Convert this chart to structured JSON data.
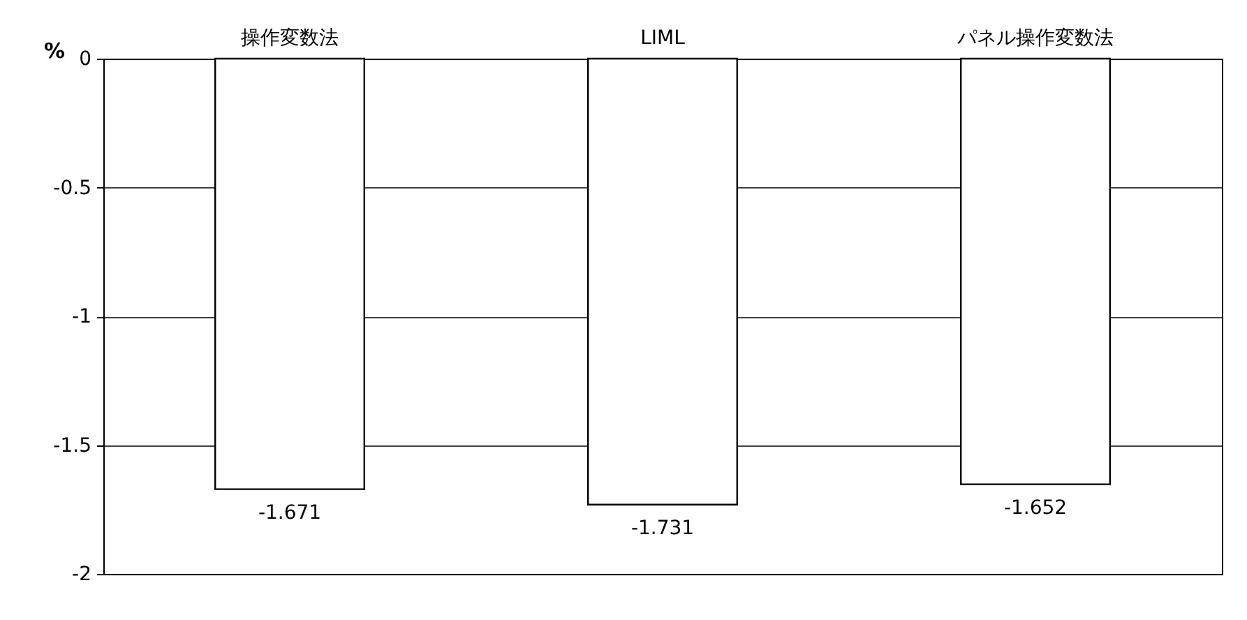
{
  "chart_data": {
    "type": "bar",
    "categories": [
      "操作変数法",
      "LIML",
      "パネル操作変数法"
    ],
    "series": [
      {
        "color": "#ffffff",
        "values": [
          -1.671,
          -1.731,
          -1.652
        ]
      }
    ],
    "ylabel": "%",
    "ylim": [
      -2,
      0
    ],
    "yticks": [
      0,
      -0.5,
      -1,
      -1.5,
      -2
    ],
    "grid": "y",
    "data_labels": true
  }
}
